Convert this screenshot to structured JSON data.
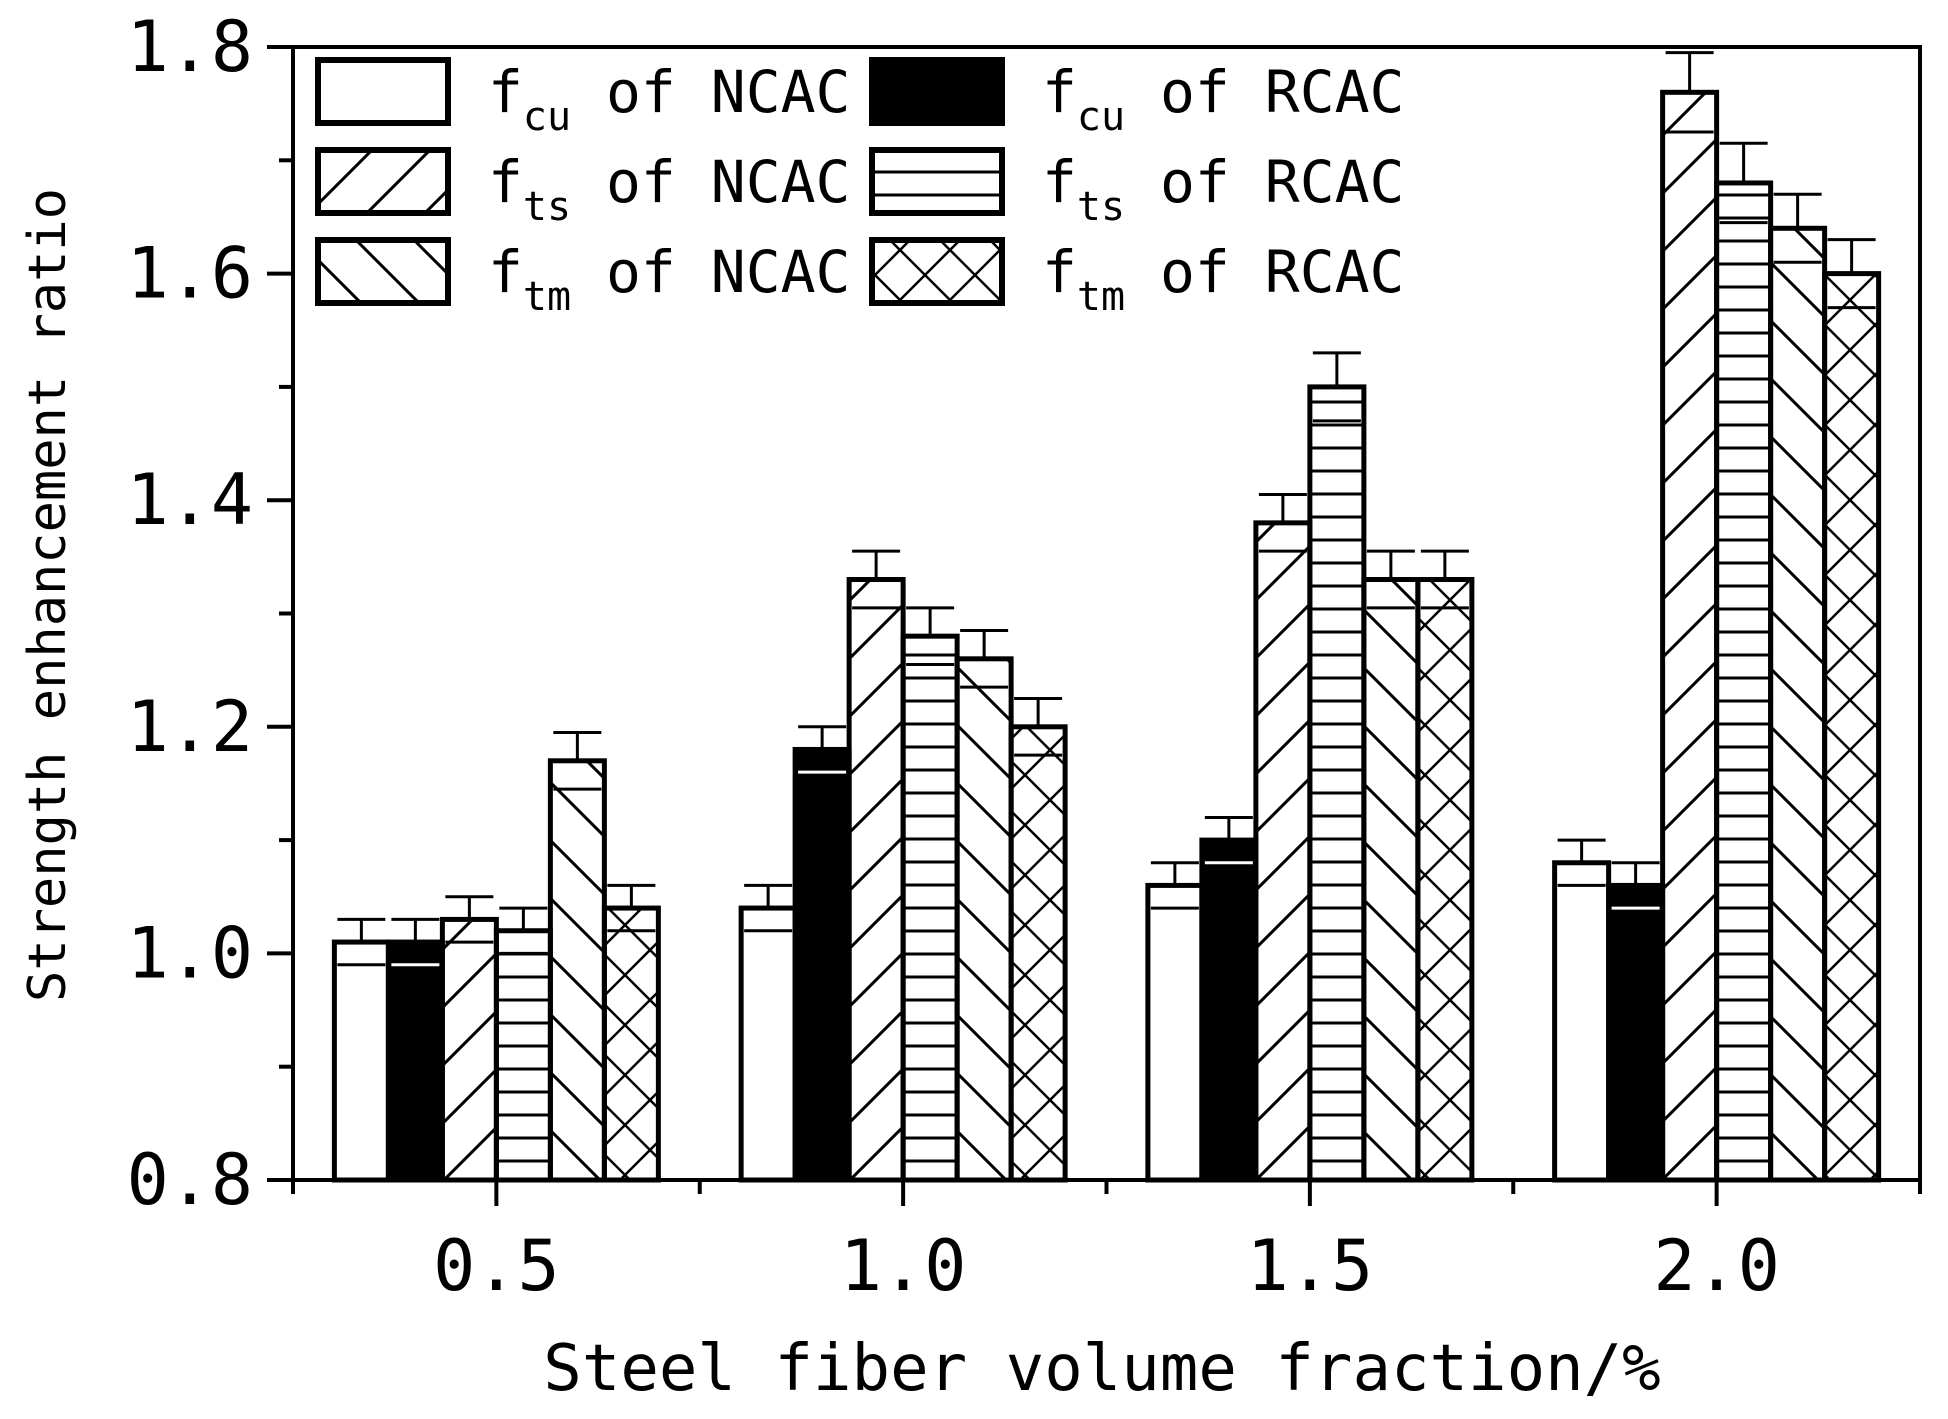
{
  "chart_data": {
    "type": "bar",
    "title": "",
    "xlabel": "Steel fiber volume fraction/%",
    "ylabel": "Strength enhancement ratio",
    "categories": [
      "0.5",
      "1.0",
      "1.5",
      "2.0"
    ],
    "ylim": [
      0.8,
      1.8
    ],
    "yticks": [
      "0.8",
      "1.0",
      "1.2",
      "1.4",
      "1.6",
      "1.8"
    ],
    "legend_position": "top-left",
    "series": [
      {
        "name": "fcu of NCAC",
        "sym": "f",
        "sub": "cu",
        "rest": " of NCAC",
        "pattern": "white",
        "values": [
          1.01,
          1.04,
          1.06,
          1.08
        ],
        "errors": [
          0.02,
          0.02,
          0.02,
          0.02
        ]
      },
      {
        "name": "fcu of RCAC",
        "sym": "f",
        "sub": "cu",
        "rest": " of RCAC",
        "pattern": "black",
        "values": [
          1.01,
          1.18,
          1.1,
          1.06
        ],
        "errors": [
          0.02,
          0.02,
          0.02,
          0.02
        ]
      },
      {
        "name": "fts of NCAC",
        "sym": "f",
        "sub": "ts",
        "rest": " of NCAC",
        "pattern": "diag-right",
        "values": [
          1.03,
          1.33,
          1.38,
          1.76
        ],
        "errors": [
          0.02,
          0.025,
          0.025,
          0.035
        ]
      },
      {
        "name": "fts of RCAC",
        "sym": "f",
        "sub": "ts",
        "rest": " of RCAC",
        "pattern": "horizontal",
        "values": [
          1.02,
          1.28,
          1.5,
          1.68
        ],
        "errors": [
          0.02,
          0.025,
          0.03,
          0.035
        ]
      },
      {
        "name": "ftm of NCAC",
        "sym": "f",
        "sub": "tm",
        "rest": " of NCAC",
        "pattern": "diag-left",
        "values": [
          1.17,
          1.26,
          1.33,
          1.64
        ],
        "errors": [
          0.025,
          0.025,
          0.025,
          0.03
        ]
      },
      {
        "name": "ftm of RCAC",
        "sym": "f",
        "sub": "tm",
        "rest": " of RCAC",
        "pattern": "cross",
        "values": [
          1.04,
          1.2,
          1.33,
          1.6
        ],
        "errors": [
          0.02,
          0.025,
          0.025,
          0.03
        ]
      }
    ]
  }
}
